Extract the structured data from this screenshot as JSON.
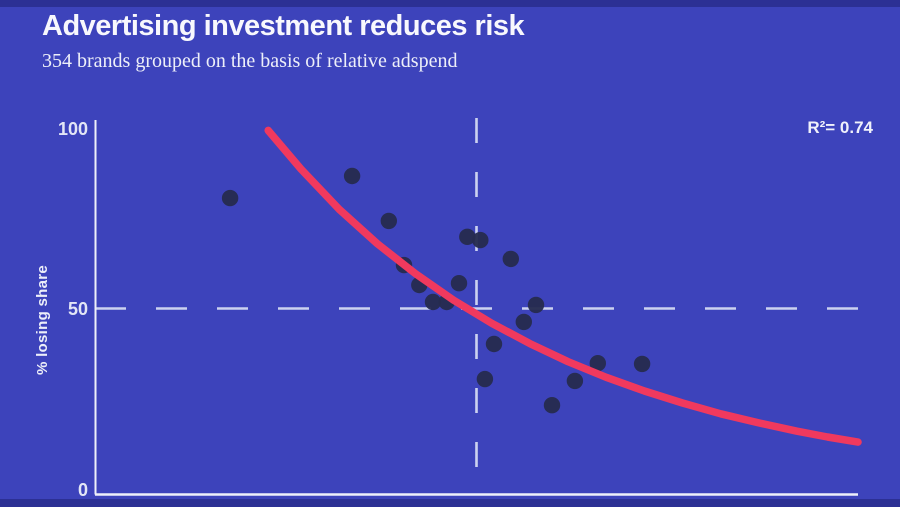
{
  "page": {
    "title": "Advertising investment reduces risk",
    "subtitle": "354 brands grouped on the basis of relative adspend"
  },
  "chart_data": {
    "type": "scatter",
    "title": "Advertising investment reduces risk",
    "subtitle": "354 brands grouped on the basis of relative adspend",
    "xlabel": "",
    "ylabel": "% losing share",
    "ylim": [
      0,
      100
    ],
    "ytick_labels": [
      "100",
      "50",
      "0"
    ],
    "yticks": [
      100,
      50,
      0
    ],
    "x_axis_note": "no tick labels shown; x = relative adspend (fraction of axis length)",
    "annotation": "R²= 0.74",
    "r_squared": 0.74,
    "legend": "none",
    "grid": "off",
    "reference_lines": {
      "horizontal_y": 50,
      "vertical_x_frac": 0.5
    },
    "points": [
      {
        "x_frac": 0.177,
        "pct_losing_share": 80.5
      },
      {
        "x_frac": 0.337,
        "pct_losing_share": 86.6
      },
      {
        "x_frac": 0.385,
        "pct_losing_share": 74.2
      },
      {
        "x_frac": 0.405,
        "pct_losing_share": 62.0
      },
      {
        "x_frac": 0.425,
        "pct_losing_share": 56.5
      },
      {
        "x_frac": 0.443,
        "pct_losing_share": 51.8
      },
      {
        "x_frac": 0.461,
        "pct_losing_share": 51.8
      },
      {
        "x_frac": 0.477,
        "pct_losing_share": 57.0
      },
      {
        "x_frac": 0.488,
        "pct_losing_share": 69.8
      },
      {
        "x_frac": 0.505,
        "pct_losing_share": 68.9
      },
      {
        "x_frac": 0.511,
        "pct_losing_share": 30.5
      },
      {
        "x_frac": 0.523,
        "pct_losing_share": 40.2
      },
      {
        "x_frac": 0.545,
        "pct_losing_share": 63.7
      },
      {
        "x_frac": 0.562,
        "pct_losing_share": 46.3
      },
      {
        "x_frac": 0.578,
        "pct_losing_share": 51.0
      },
      {
        "x_frac": 0.599,
        "pct_losing_share": 23.3
      },
      {
        "x_frac": 0.629,
        "pct_losing_share": 30.0
      },
      {
        "x_frac": 0.659,
        "pct_losing_share": 34.9
      },
      {
        "x_frac": 0.717,
        "pct_losing_share": 34.7
      }
    ],
    "trend_curve": {
      "shape": "exponential decay",
      "waypoints": [
        {
          "x_frac": 0.227,
          "pct": 99.2
        },
        {
          "x_frac": 0.27,
          "pct": 88.5
        },
        {
          "x_frac": 0.32,
          "pct": 77.4
        },
        {
          "x_frac": 0.37,
          "pct": 67.9
        },
        {
          "x_frac": 0.42,
          "pct": 59.6
        },
        {
          "x_frac": 0.47,
          "pct": 52.3
        },
        {
          "x_frac": 0.52,
          "pct": 45.9
        },
        {
          "x_frac": 0.57,
          "pct": 40.3
        },
        {
          "x_frac": 0.62,
          "pct": 35.3
        },
        {
          "x_frac": 0.67,
          "pct": 31.0
        },
        {
          "x_frac": 0.72,
          "pct": 27.2
        },
        {
          "x_frac": 0.77,
          "pct": 23.9
        },
        {
          "x_frac": 0.82,
          "pct": 20.9
        },
        {
          "x_frac": 0.87,
          "pct": 18.4
        },
        {
          "x_frac": 0.92,
          "pct": 16.1
        },
        {
          "x_frac": 0.96,
          "pct": 14.5
        },
        {
          "x_frac": 1.0,
          "pct": 13.1
        }
      ]
    },
    "colors": {
      "background": "#3d43bb",
      "point": "#272c4f",
      "trend": "#f0395e",
      "axis": "#eef0fa",
      "dashed_reference": "#ccd2f0",
      "title_text": "#f8f8fd"
    }
  }
}
